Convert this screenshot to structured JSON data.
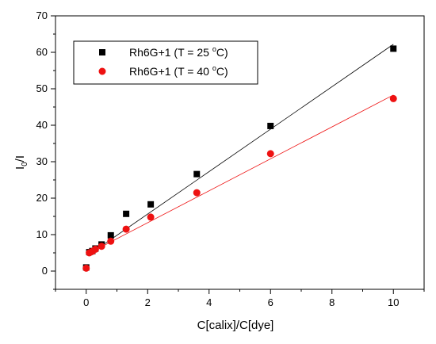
{
  "chart_data": {
    "type": "scatter",
    "xlabel": "C[calix]/C[dye]",
    "ylabel_main": "I",
    "ylabel_sub": "0",
    "ylabel_tail": "/I",
    "xlim": [
      -1,
      11
    ],
    "ylim": [
      -5,
      70
    ],
    "x_ticks": [
      0,
      2,
      4,
      6,
      8,
      10
    ],
    "y_ticks": [
      0,
      10,
      20,
      30,
      40,
      50,
      60,
      70
    ],
    "x_minor_step": 1,
    "y_minor_step": 5,
    "legend_position": "top-left",
    "series": [
      {
        "name": "Rh6G+1 (T = 25 °C)",
        "label_pre": "Rh6G+1 (T = 25 ",
        "label_sup": "o",
        "label_post": "C)",
        "color": "#000000",
        "marker": "square",
        "x": [
          0,
          0.1,
          0.2,
          0.3,
          0.5,
          0.8,
          1.3,
          2.1,
          3.6,
          6.0,
          10.0
        ],
        "y": [
          1.0,
          5.2,
          5.5,
          6.2,
          7.3,
          9.8,
          15.7,
          18.3,
          26.6,
          39.8,
          61.0
        ],
        "fit": {
          "intercept": 4.0,
          "slope": 5.82,
          "x_range": [
            0.1,
            10.0
          ]
        }
      },
      {
        "name": "Rh6G+1 (T = 40 °C)",
        "label_pre": "Rh6G+1 (T = 40 ",
        "label_sup": "o",
        "label_post": "C)",
        "color": "#ee1111",
        "marker": "circle",
        "x": [
          0,
          0.1,
          0.2,
          0.3,
          0.5,
          0.8,
          1.3,
          2.1,
          3.6,
          6.0,
          10.0
        ],
        "y": [
          0.8,
          5.0,
          5.4,
          6.0,
          6.8,
          8.2,
          11.5,
          14.8,
          21.5,
          32.2,
          47.3
        ],
        "fit": {
          "intercept": 4.5,
          "slope": 4.38,
          "x_range": [
            0.1,
            10.0
          ]
        }
      }
    ]
  }
}
